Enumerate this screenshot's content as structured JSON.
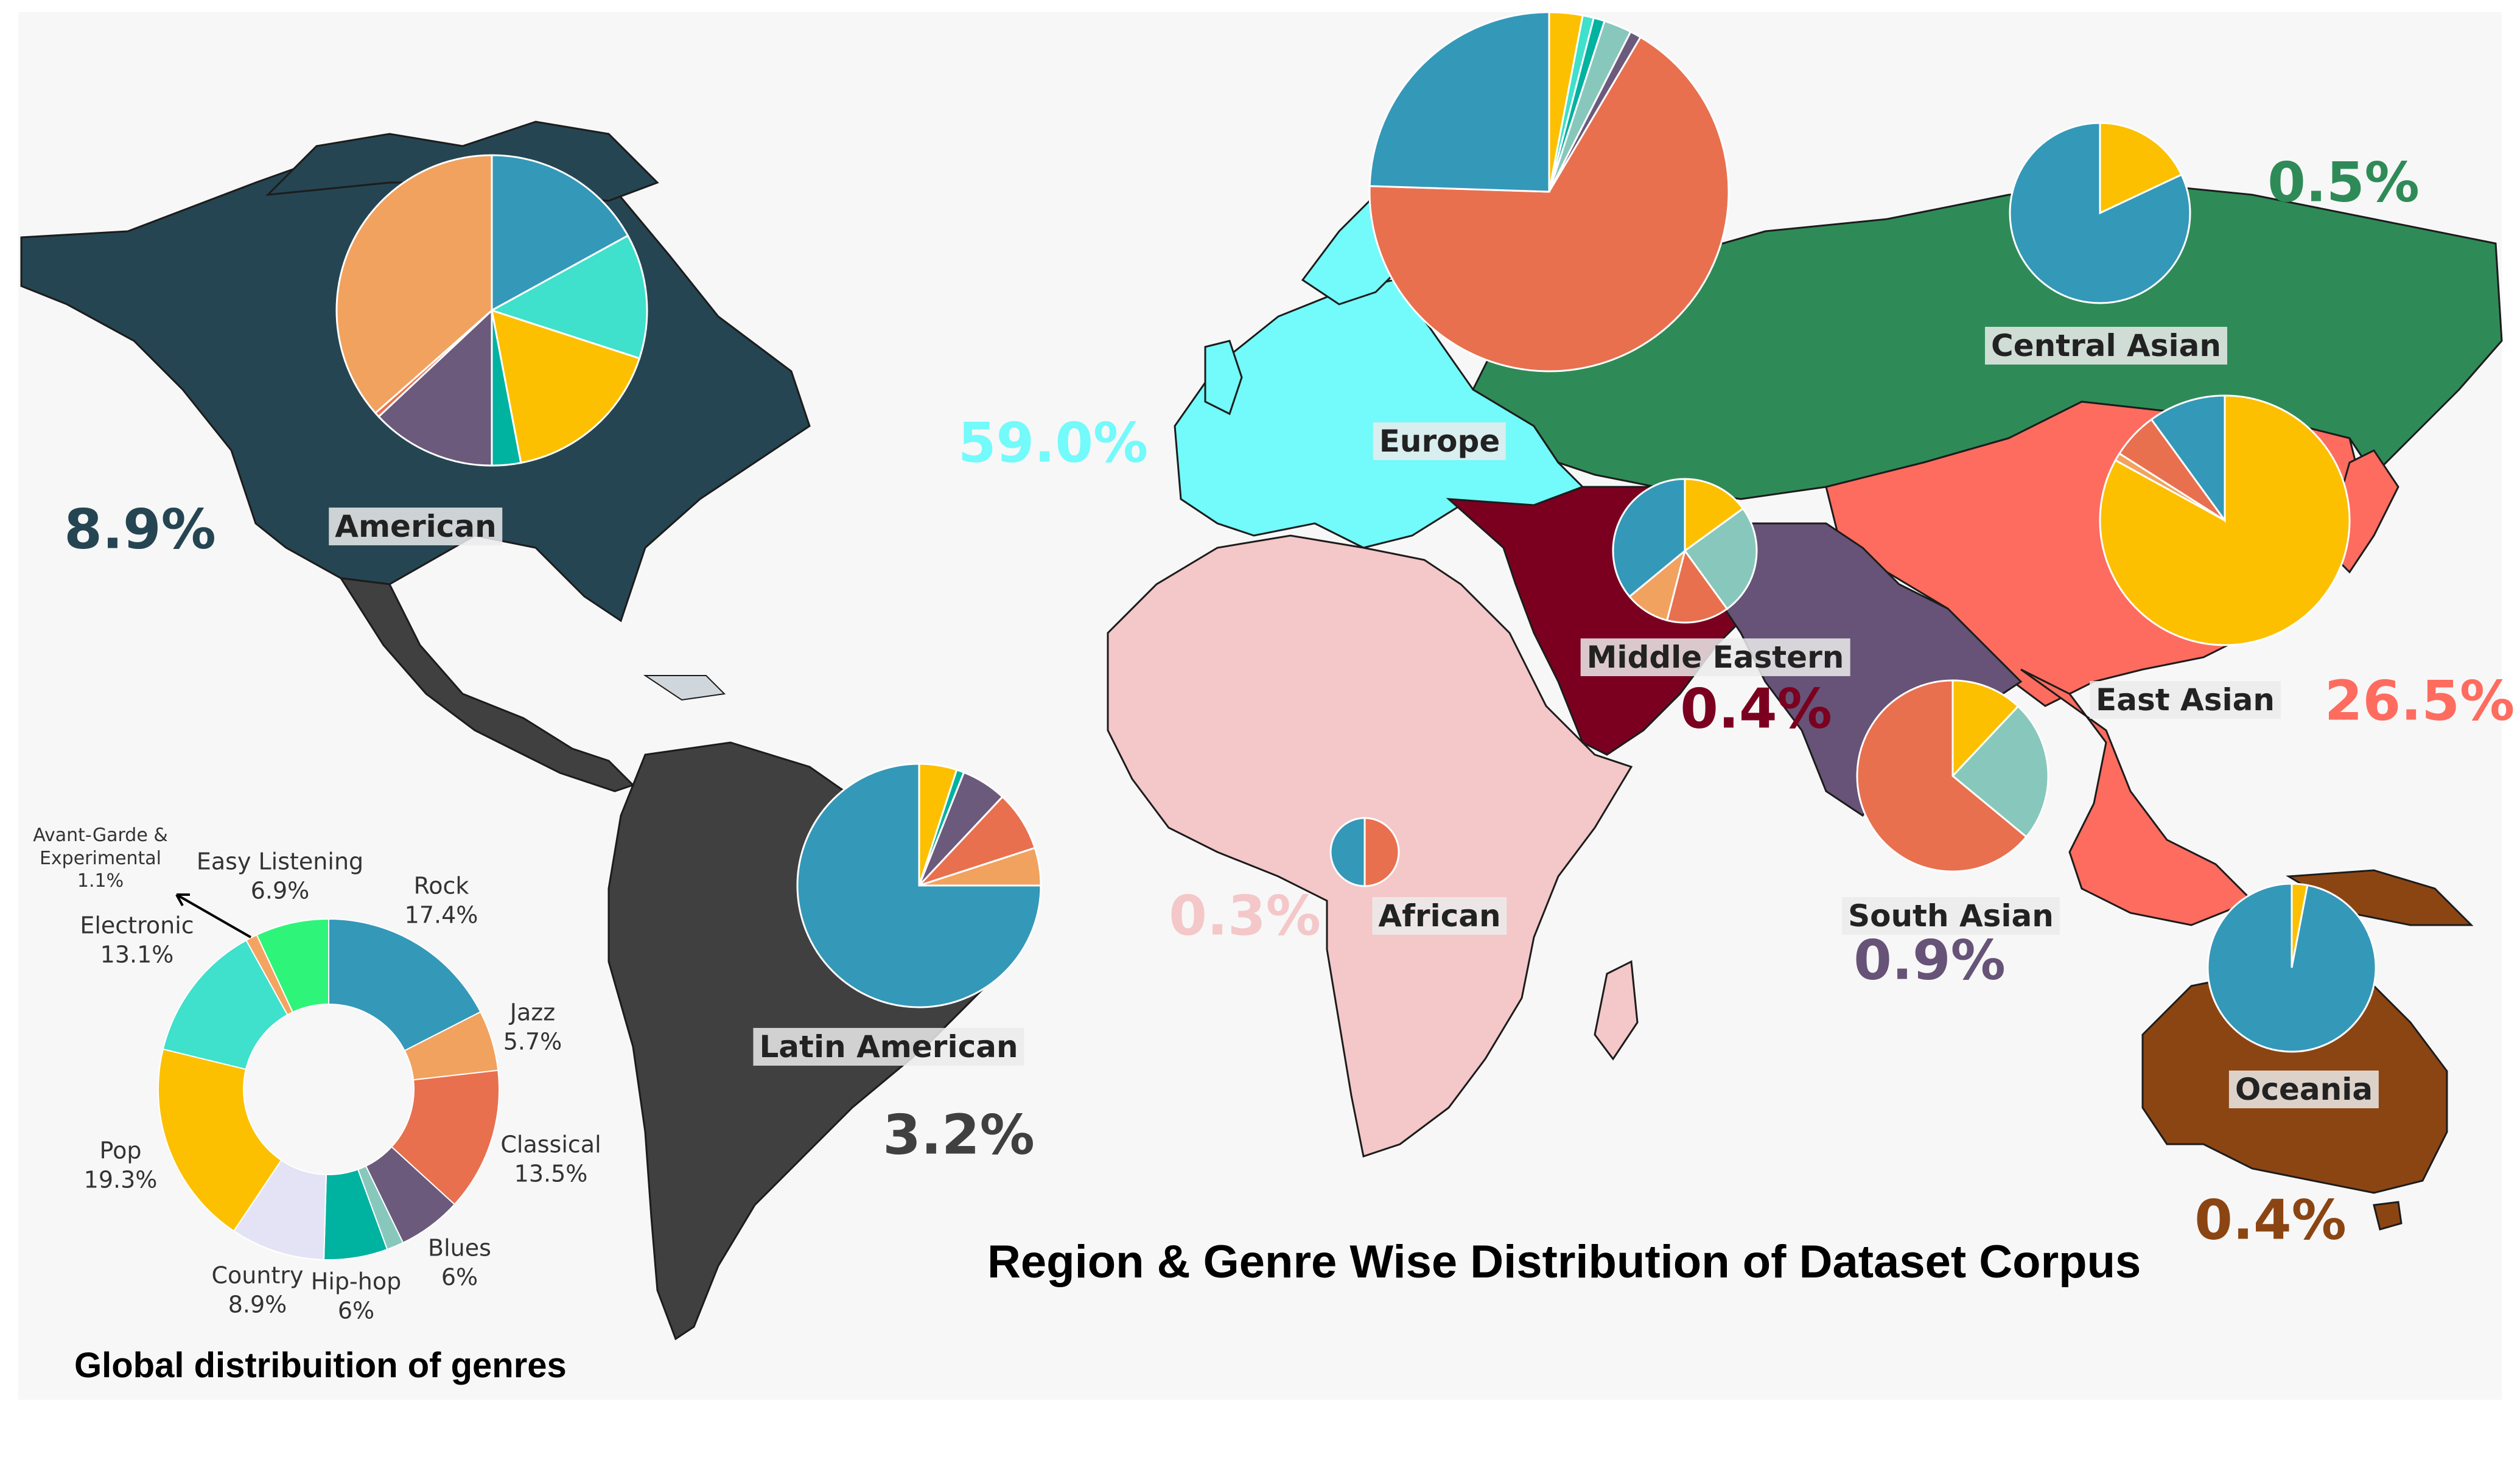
{
  "title": "Region & Genre Wise Distribution of Dataset Corpus",
  "global_chart_title": "Global distribuition of genres",
  "colors": {
    "american": "#254552",
    "latin": "#404040",
    "europe": "#73fafb",
    "central_asian": "#2e8b57",
    "east_asian": "#fe6c5f",
    "middle_eastern": "#7b0020",
    "south_asian": "#665377",
    "african": "#f4c7c8",
    "oceania": "#8b4513",
    "other_land": "#e6e6e6"
  },
  "regions": [
    {
      "key": "american",
      "label": "American",
      "percent": "8.9%",
      "color": "#254552",
      "pie": [
        {
          "genre": "Rock",
          "value": 17
        },
        {
          "genre": "Electronic",
          "value": 13
        },
        {
          "genre": "Pop",
          "value": 17
        },
        {
          "genre": "Hip-hop",
          "value": 3
        },
        {
          "genre": "Blues",
          "value": 13
        },
        {
          "genre": "Classical",
          "value": 0.5
        },
        {
          "genre": "Jazz",
          "value": 36.5
        }
      ]
    },
    {
      "key": "latin",
      "label": "Latin American",
      "percent": "3.2%",
      "color": "#404040",
      "pie": [
        {
          "genre": "Pop",
          "value": 5
        },
        {
          "genre": "Hip-hop",
          "value": 1
        },
        {
          "genre": "Blues",
          "value": 6
        },
        {
          "genre": "Classical",
          "value": 8
        },
        {
          "genre": "Jazz",
          "value": 5
        },
        {
          "genre": "Rock",
          "value": 75
        }
      ]
    },
    {
      "key": "europe",
      "label": "Europe",
      "percent": "59.0%",
      "color": "#73fafb",
      "pie": [
        {
          "genre": "Pop",
          "value": 3
        },
        {
          "genre": "Electronic",
          "value": 1
        },
        {
          "genre": "Hip-hop",
          "value": 1
        },
        {
          "genre": "Country",
          "value": 2.5
        },
        {
          "genre": "Blues",
          "value": 1
        },
        {
          "genre": "Classical",
          "value": 67
        },
        {
          "genre": "Rock",
          "value": 24.5
        }
      ]
    },
    {
      "key": "central_asian",
      "label": "Central Asian",
      "percent": "0.5%",
      "color": "#2e8b57",
      "pie": [
        {
          "genre": "Pop",
          "value": 18
        },
        {
          "genre": "Rock",
          "value": 82
        }
      ]
    },
    {
      "key": "east_asian",
      "label": "East Asian",
      "percent": "26.5%",
      "color": "#fe6c5f",
      "pie": [
        {
          "genre": "Pop",
          "value": 83
        },
        {
          "genre": "Jazz",
          "value": 1
        },
        {
          "genre": "Classical",
          "value": 6
        },
        {
          "genre": "Rock",
          "value": 10
        }
      ]
    },
    {
      "key": "middle_eastern",
      "label": "Middle Eastern",
      "percent": "0.4%",
      "color": "#7b0020",
      "pie": [
        {
          "genre": "Pop",
          "value": 15
        },
        {
          "genre": "Country",
          "value": 25
        },
        {
          "genre": "Classical",
          "value": 14
        },
        {
          "genre": "Jazz",
          "value": 10
        },
        {
          "genre": "Rock",
          "value": 36
        }
      ]
    },
    {
      "key": "south_asian",
      "label": "South Asian",
      "percent": "0.9%",
      "color": "#665377",
      "pie": [
        {
          "genre": "Pop",
          "value": 12
        },
        {
          "genre": "Country",
          "value": 24
        },
        {
          "genre": "Classical",
          "value": 64
        }
      ]
    },
    {
      "key": "african",
      "label": "African",
      "percent": "0.3%",
      "color": "#f4c7c8",
      "pie": [
        {
          "genre": "Classical",
          "value": 50
        },
        {
          "genre": "Rock",
          "value": 50
        }
      ]
    },
    {
      "key": "oceania",
      "label": "Oceania",
      "percent": "0.4%",
      "color": "#8b4513",
      "pie": [
        {
          "genre": "Pop",
          "value": 3
        },
        {
          "genre": "Rock",
          "value": 97
        }
      ]
    }
  ],
  "genre_colors": {
    "Rock": "#3498b9",
    "Jazz": "#f1a25f",
    "Classical": "#e8704f",
    "Blues": "#6b5a7b",
    "Country": "#88c8bc",
    "Hip-hop": "#00b2a0",
    "Easy Listening": "#e4e3f5",
    "Pop": "#fcc000",
    "Electronic": "#3fe0cc",
    "Avant-Garde & Experimental": "#f4a460",
    "Easy": "#2ef57a"
  },
  "chart_data": {
    "type": "pie",
    "title": "Global distribuition of genres",
    "series": [
      {
        "name": "Rock",
        "label": "Rock",
        "pct": "17.4%",
        "value": 17.4
      },
      {
        "name": "Jazz",
        "label": "Jazz",
        "pct": "5.7%",
        "value": 5.7
      },
      {
        "name": "Classical",
        "label": "Classical",
        "pct": "13.5%",
        "value": 13.5
      },
      {
        "name": "Blues",
        "label": "Blues",
        "pct": "6%",
        "value": 6
      },
      {
        "name": "Country",
        "label": "",
        "pct": "",
        "value": 1.6
      },
      {
        "name": "Hip-hop",
        "label": "Hip-hop",
        "pct": "6%",
        "value": 6
      },
      {
        "name": "Easy Listening2",
        "label": "Country",
        "pct": "8.9%",
        "value": 8.9
      },
      {
        "name": "Pop",
        "label": "Pop",
        "pct": "19.3%",
        "value": 19.3
      },
      {
        "name": "Electronic",
        "label": "Electronic",
        "pct": "13.1%",
        "value": 13.1
      },
      {
        "name": "Avant-Garde & Experimental",
        "label": "Avant-Garde &\nExperimental",
        "pct": "1.1%",
        "value": 1.1
      },
      {
        "name": "Easy Listening",
        "label": "Easy Listening",
        "pct": "6.9%",
        "value": 6.9
      }
    ]
  }
}
